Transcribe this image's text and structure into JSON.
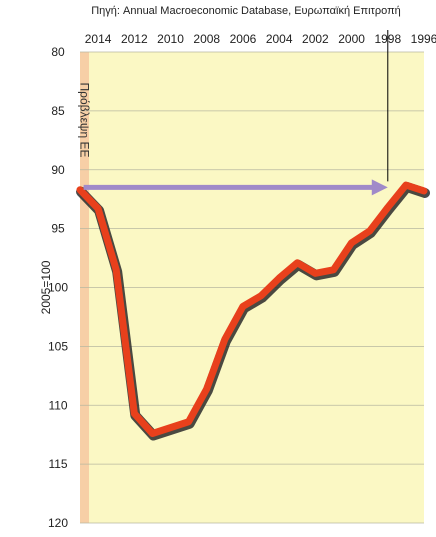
{
  "chart_data": {
    "type": "line",
    "source": "Πηγή: Annual Macroeconomic Database, Ευρωπαϊκή Επιτροπή",
    "ylabel": "2005=100",
    "band_label": "Πρόβλεψη ΕΕ",
    "marker_year_label": "1998",
    "x_ticks": [
      "1996",
      "1998",
      "2000",
      "2002",
      "2004",
      "2006",
      "2008",
      "2010",
      "2012",
      "2014"
    ],
    "y_ticks": [
      "80",
      "85",
      "90",
      "95",
      "100",
      "105",
      "110",
      "115",
      "120"
    ],
    "ylim": [
      80,
      120
    ],
    "y_inverted": true,
    "x_reversed": false,
    "mirrored_image": true,
    "colors": {
      "plot_bg": "#fbf8c4",
      "forecast_band": "#f7cfa6",
      "line": "#e8401c",
      "line_shadow": "#2a2a2a",
      "arrow": "#a08ac9",
      "grid": "#b8b8a0"
    },
    "series": [
      {
        "x": [
          1996,
          1997,
          1998,
          1999,
          2000,
          2001,
          2002,
          2003,
          2004,
          2005,
          2006,
          2007,
          2008,
          2009,
          2010,
          2011,
          2012,
          2013,
          2014,
          2015
        ],
        "values": [
          91.8,
          91.3,
          93.2,
          95.2,
          96.2,
          98.5,
          98.8,
          97.9,
          99.2,
          100.7,
          101.6,
          104.4,
          108.6,
          111.4,
          111.9,
          112.4,
          110.7,
          98.5,
          93.3,
          91.7
        ]
      }
    ],
    "arrow": {
      "from_x": 2014.8,
      "to_x": 1998.0,
      "y": 91.5
    },
    "forecast_from": 2014.5
  }
}
